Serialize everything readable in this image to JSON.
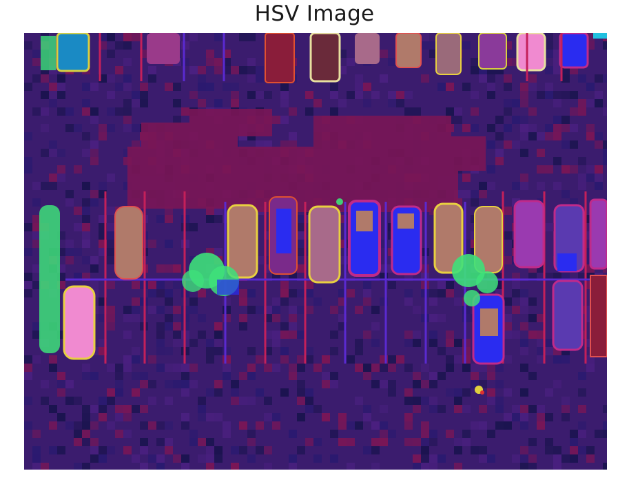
{
  "figure": {
    "title": "HSV Image"
  },
  "image": {
    "description_icon": "hsv-parking-lot-image",
    "palette": {
      "background": "#3b1c6e",
      "dark_patch": "#1b1450",
      "magenta_patch": "#7a1656",
      "line": "#5a2ad0",
      "red_line": "#c4205a",
      "tree": "#3ee07a",
      "car_blue": "#2a2cf0",
      "car_tan": "#b07a6a",
      "car_pink": "#f08ad0",
      "car_yellow_edge": "#e8d040"
    }
  }
}
